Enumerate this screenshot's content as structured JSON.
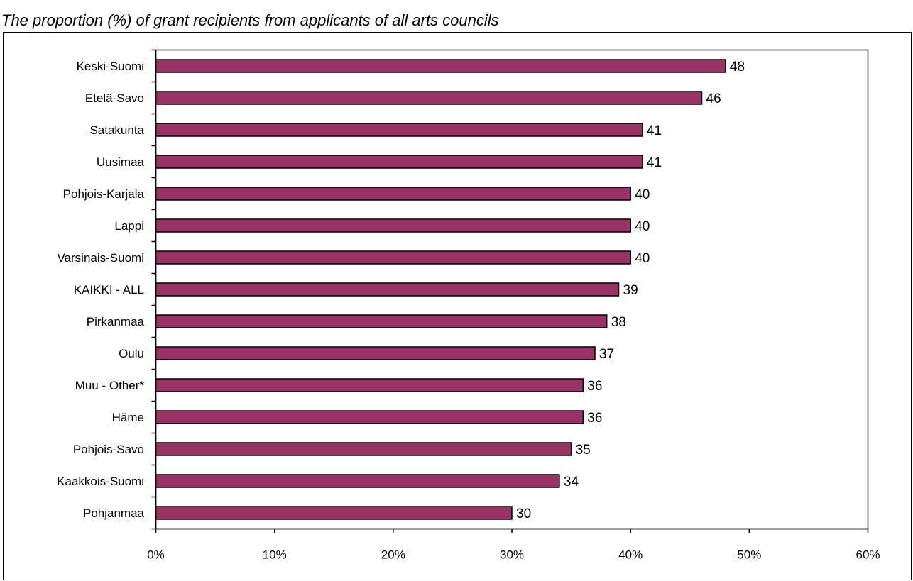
{
  "header": {
    "title": "",
    "subtitle": "The proportion (%) of grant recipients from applicants of all arts councils"
  },
  "chart_data": {
    "type": "bar",
    "orientation": "horizontal",
    "categories": [
      "Keski-Suomi",
      "Etelä-Savo",
      "Satakunta",
      "Uusimaa",
      "Pohjois-Karjala",
      "Lappi",
      "Varsinais-Suomi",
      "KAIKKI - ALL",
      "Pirkanmaa",
      "Oulu",
      "Muu - Other*",
      "Häme",
      "Pohjois-Savo",
      "Kaakkois-Suomi",
      "Pohjanmaa"
    ],
    "values": [
      48,
      46,
      41,
      41,
      40,
      40,
      40,
      39,
      38,
      37,
      36,
      36,
      35,
      34,
      30
    ],
    "data_labels": [
      "48",
      "46",
      "41",
      "41",
      "40",
      "40",
      "40",
      "39",
      "38",
      "37",
      "36",
      "36",
      "35",
      "34",
      "30"
    ],
    "xlim": [
      0,
      60
    ],
    "xticks": [
      0,
      10,
      20,
      30,
      40,
      50,
      60
    ],
    "xtick_labels": [
      "0%",
      "10%",
      "20%",
      "30%",
      "40%",
      "50%",
      "60%"
    ],
    "grid": false,
    "legend": "none",
    "colors": {
      "bar_fill": "#993366",
      "bar_stroke": "#000000",
      "plot_border": "#808080",
      "outer_border": "#000000"
    }
  }
}
